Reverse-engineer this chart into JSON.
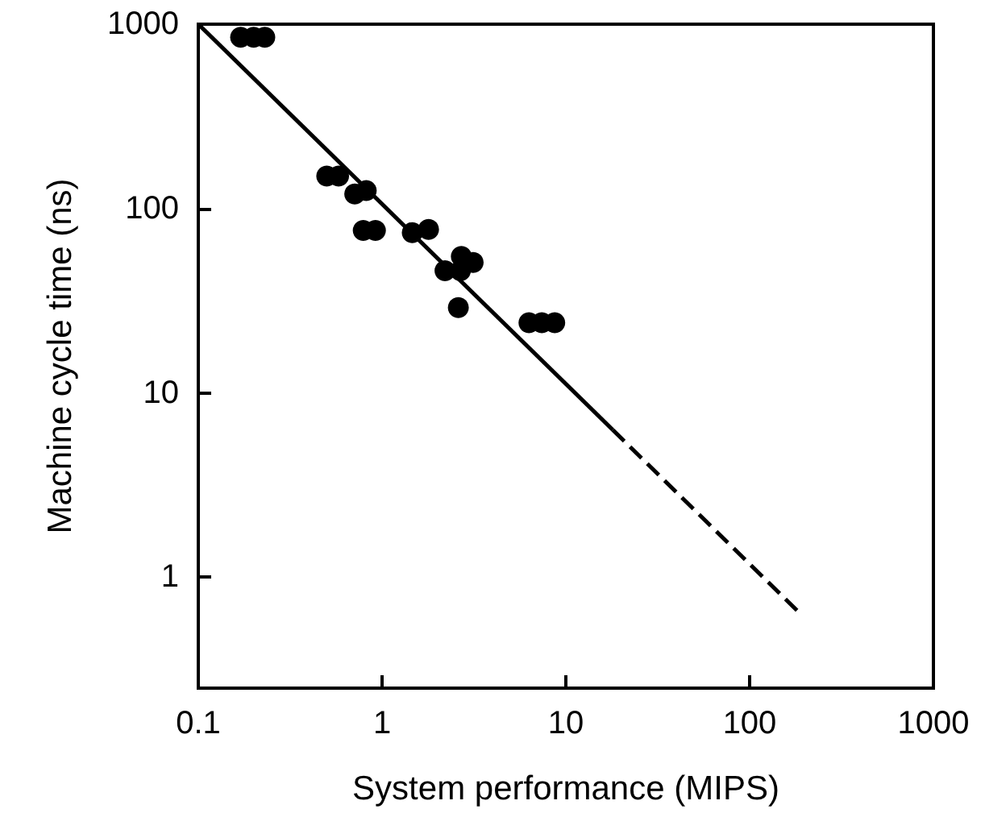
{
  "chart_data": {
    "type": "scatter",
    "xlabel": "System performance (MIPS)",
    "ylabel": "Machine cycle time (ns)",
    "log": "xy",
    "xlim": [
      0.1,
      1000
    ],
    "ylim": [
      0.25,
      1000
    ],
    "xticks": [
      0.1,
      1,
      10,
      100,
      1000
    ],
    "yticks": [
      1,
      10,
      100,
      1000
    ],
    "grid": false,
    "series": [
      {
        "color": "#000000",
        "marker": "circle",
        "x": [
          0.17,
          0.2,
          0.23,
          0.5,
          0.58,
          0.71,
          0.82,
          0.79,
          0.92,
          1.46,
          1.79,
          2.2,
          2.67,
          2.7,
          3.13,
          2.6,
          6.3,
          7.4,
          8.7
        ],
        "values": [
          850,
          850,
          850,
          150,
          150,
          120,
          125,
          76,
          76,
          74,
          77,
          46,
          46,
          55,
          51,
          29,
          24,
          24,
          24
        ]
      },
      {
        "type": "line",
        "color": "#000000",
        "line_style": "solid",
        "x": [
          0.1,
          18
        ],
        "values": [
          1000,
          6.3
        ]
      },
      {
        "type": "line",
        "color": "#000000",
        "line_style": "dashed",
        "x": [
          18,
          190
        ],
        "values": [
          6.3,
          0.63
        ]
      }
    ]
  }
}
